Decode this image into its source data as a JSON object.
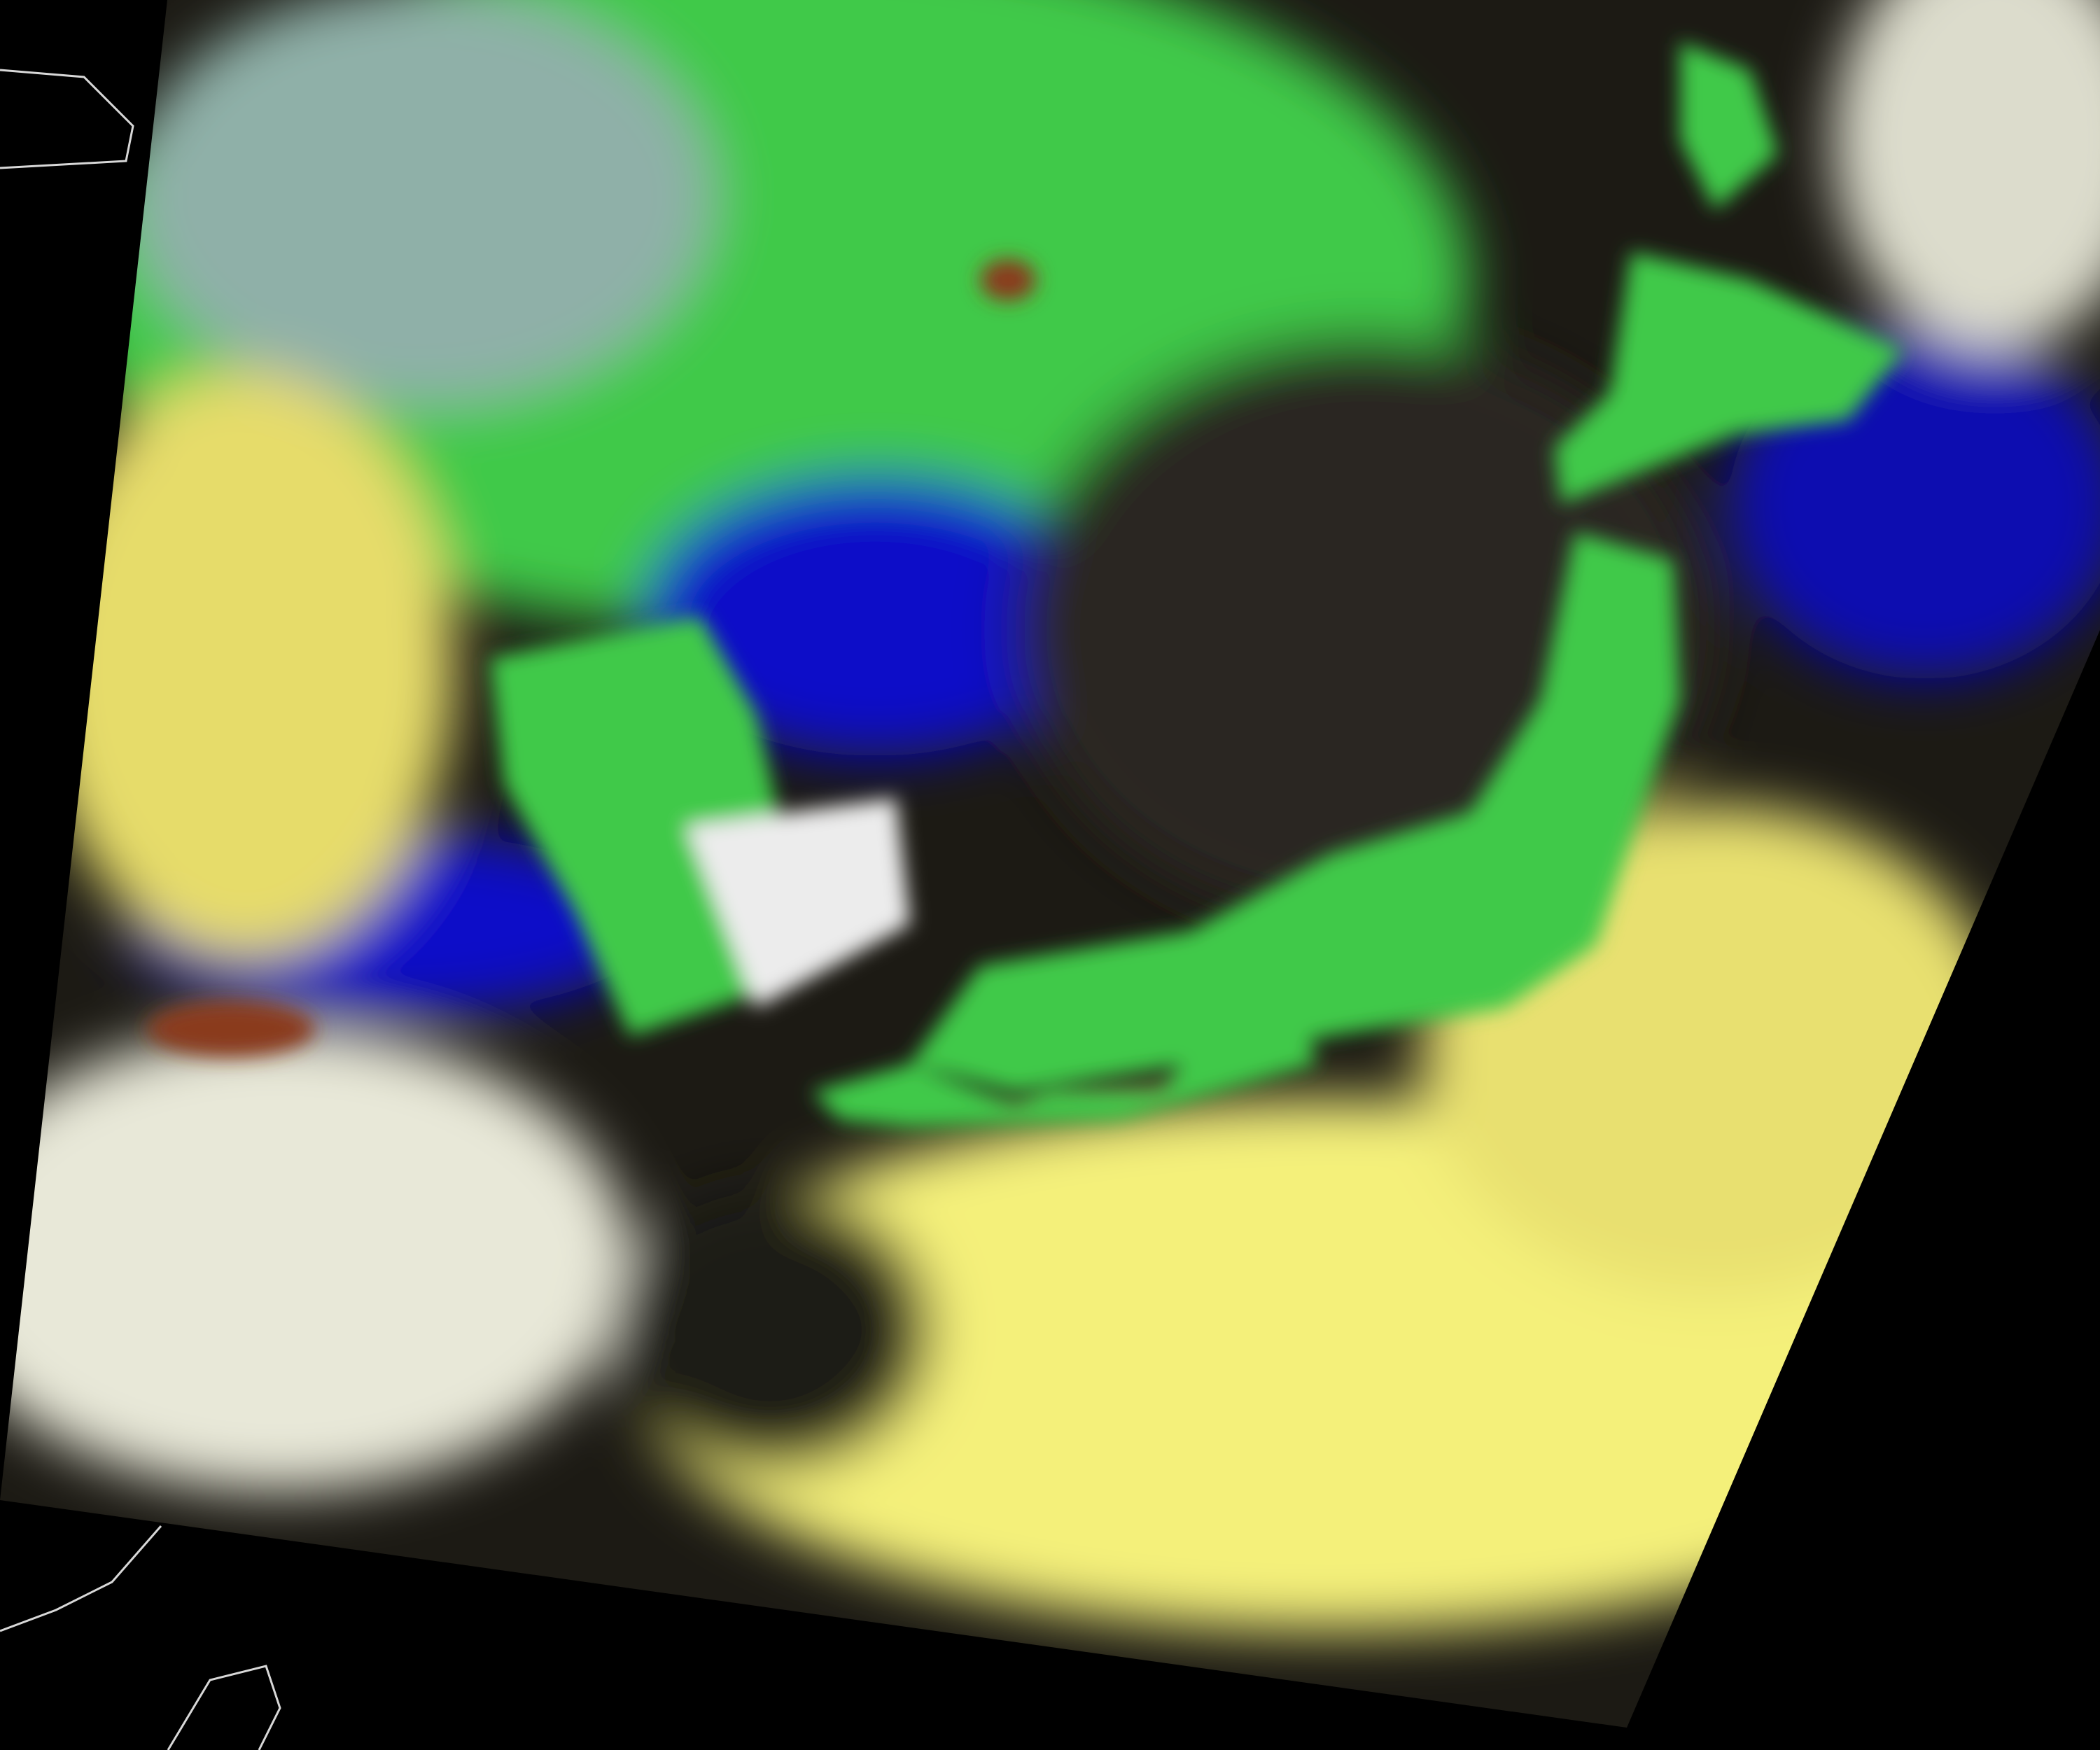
{
  "image": {
    "kind": "false-color satellite swath over East Asia",
    "colors": {
      "background": "#000000",
      "land_vegetation": "#3fc94a",
      "arid_land": "#8fb0a8",
      "open_water": "#0a0ac8",
      "dark_sea": "#1c1a14",
      "ice_cloud": "#f4f07a",
      "water_cloud": "#e8e8e0",
      "burn_scar": "#8a3a1a",
      "coastline": "#d8d8d8"
    }
  }
}
